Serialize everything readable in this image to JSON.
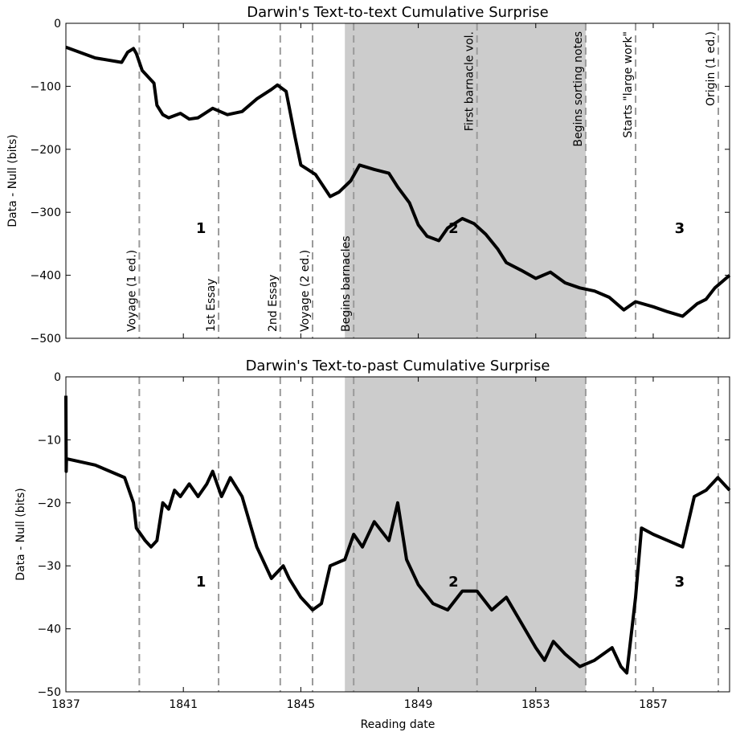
{
  "figure": {
    "xlabel": "Reading date"
  },
  "chart_data": [
    {
      "type": "line",
      "title": "Darwin's Text-to-text Cumulative Surprise",
      "xlabel": "",
      "ylabel": "Data - Null (bits)",
      "xlim": [
        1837,
        1859.6
      ],
      "ylim": [
        -500,
        0
      ],
      "xticks": [
        1837,
        1841,
        1845,
        1849,
        1853,
        1857
      ],
      "yticks": [
        0,
        -100,
        -200,
        -300,
        -400,
        -500
      ],
      "ytick_labels": [
        "0",
        "−100",
        "−200",
        "−300",
        "−400",
        "−500"
      ],
      "grid": false,
      "shaded_region": [
        1846.5,
        1854.7
      ],
      "event_lines": [
        {
          "x": 1839.5,
          "label": "Voyage (1 ed.)",
          "pos": "bottom"
        },
        {
          "x": 1842.2,
          "label": "1st Essay",
          "pos": "bottom"
        },
        {
          "x": 1844.3,
          "label": "2nd Essay",
          "pos": "bottom"
        },
        {
          "x": 1845.4,
          "label": "Voyage (2 ed.)",
          "pos": "bottom"
        },
        {
          "x": 1846.8,
          "label": "Begins barnacles",
          "pos": "bottom"
        },
        {
          "x": 1851.0,
          "label": "First barnacle vol.",
          "pos": "top"
        },
        {
          "x": 1854.7,
          "label": "Begins sorting notes",
          "pos": "top"
        },
        {
          "x": 1856.4,
          "label": "Starts \"large work\"",
          "pos": "top"
        },
        {
          "x": 1859.9,
          "label": "Origin (1 ed.)",
          "pos": "top"
        }
      ],
      "period_labels": [
        {
          "x": 1841.6,
          "y": -325,
          "text": "1"
        },
        {
          "x": 1850.2,
          "y": -325,
          "text": "2"
        },
        {
          "x": 1857.9,
          "y": -325,
          "text": "3"
        }
      ],
      "series": [
        {
          "x": [
            1837.0,
            1838.0,
            1838.9,
            1839.1,
            1839.3,
            1839.4,
            1839.6,
            1839.8,
            1840.0,
            1840.1,
            1840.3,
            1840.5,
            1840.9,
            1841.2,
            1841.5,
            1842.0,
            1842.5,
            1843.0,
            1843.5,
            1844.0,
            1844.2,
            1844.5,
            1844.8,
            1845.0,
            1845.5,
            1846.0,
            1846.3,
            1846.7,
            1847.0,
            1847.5,
            1848.0,
            1848.3,
            1848.7,
            1849.0,
            1849.3,
            1849.7,
            1850.0,
            1850.5,
            1850.9,
            1851.3,
            1851.7,
            1852.0,
            1852.5,
            1853.0,
            1853.5,
            1854.0,
            1854.5,
            1855.0,
            1855.5,
            1856.0,
            1856.4,
            1857.0,
            1857.5,
            1858.0,
            1858.5,
            1858.8,
            1859.1,
            1859.6
          ],
          "values": [
            -38,
            -55,
            -62,
            -46,
            -40,
            -48,
            -75,
            -85,
            -95,
            -130,
            -145,
            -150,
            -143,
            -152,
            -150,
            -135,
            -145,
            -140,
            -120,
            -105,
            -98,
            -108,
            -180,
            -225,
            -240,
            -275,
            -268,
            -250,
            -225,
            -232,
            -238,
            -260,
            -285,
            -320,
            -338,
            -345,
            -325,
            -310,
            -318,
            -335,
            -358,
            -380,
            -392,
            -405,
            -395,
            -412,
            -420,
            -425,
            -435,
            -455,
            -442,
            -450,
            -458,
            -465,
            -445,
            -438,
            -420,
            -400
          ]
        }
      ]
    },
    {
      "type": "line",
      "title": "Darwin's Text-to-past Cumulative Surprise",
      "xlabel": "Reading date",
      "ylabel": "Data - Null (bits)",
      "xlim": [
        1837,
        1859.6
      ],
      "ylim": [
        -50,
        0
      ],
      "xticks": [
        1837,
        1841,
        1845,
        1849,
        1853,
        1857
      ],
      "yticks": [
        0,
        -10,
        -20,
        -30,
        -40,
        -50
      ],
      "ytick_labels": [
        "0",
        "−10",
        "−20",
        "−30",
        "−40",
        "−50"
      ],
      "grid": false,
      "shaded_region": [
        1846.5,
        1854.7
      ],
      "event_lines": [
        {
          "x": 1839.5
        },
        {
          "x": 1842.2
        },
        {
          "x": 1844.3
        },
        {
          "x": 1845.4
        },
        {
          "x": 1846.8
        },
        {
          "x": 1851.0
        },
        {
          "x": 1854.7
        },
        {
          "x": 1856.4
        },
        {
          "x": 1859.9
        }
      ],
      "period_labels": [
        {
          "x": 1841.6,
          "y": -32.5,
          "text": "1"
        },
        {
          "x": 1850.2,
          "y": -32.5,
          "text": "2"
        },
        {
          "x": 1857.9,
          "y": -32.5,
          "text": "3"
        }
      ],
      "series": [
        {
          "x": [
            1837.0,
            1837.01,
            1837.02,
            1838.0,
            1839.0,
            1839.3,
            1839.4,
            1839.7,
            1839.9,
            1840.1,
            1840.3,
            1840.5,
            1840.7,
            1840.9,
            1841.2,
            1841.5,
            1841.8,
            1842.0,
            1842.3,
            1842.6,
            1843.0,
            1843.5,
            1844.0,
            1844.4,
            1844.6,
            1845.0,
            1845.4,
            1845.7,
            1846.0,
            1846.5,
            1846.8,
            1847.1,
            1847.5,
            1848.0,
            1848.3,
            1848.6,
            1849.0,
            1849.5,
            1850.0,
            1850.5,
            1851.0,
            1851.5,
            1852.0,
            1852.5,
            1853.0,
            1853.3,
            1853.6,
            1854.0,
            1854.5,
            1855.0,
            1855.6,
            1855.9,
            1856.1,
            1856.4,
            1856.6,
            1857.0,
            1857.5,
            1858.0,
            1858.4,
            1858.8,
            1859.2,
            1859.6
          ],
          "values": [
            -3,
            -15,
            -13,
            -14,
            -16,
            -20,
            -24,
            -26,
            -27,
            -26,
            -20,
            -21,
            -18,
            -19,
            -17,
            -19,
            -17,
            -15,
            -19,
            -16,
            -19,
            -27,
            -32,
            -30,
            -32,
            -35,
            -37,
            -36,
            -30,
            -29,
            -25,
            -27,
            -23,
            -26,
            -20,
            -29,
            -33,
            -36,
            -37,
            -34,
            -34,
            -37,
            -35,
            -39,
            -43,
            -45,
            -42,
            -44,
            -46,
            -45,
            -43,
            -46,
            -47,
            -35,
            -24,
            -25,
            -26,
            -27,
            -19,
            -18,
            -16,
            -18
          ]
        }
      ]
    }
  ]
}
